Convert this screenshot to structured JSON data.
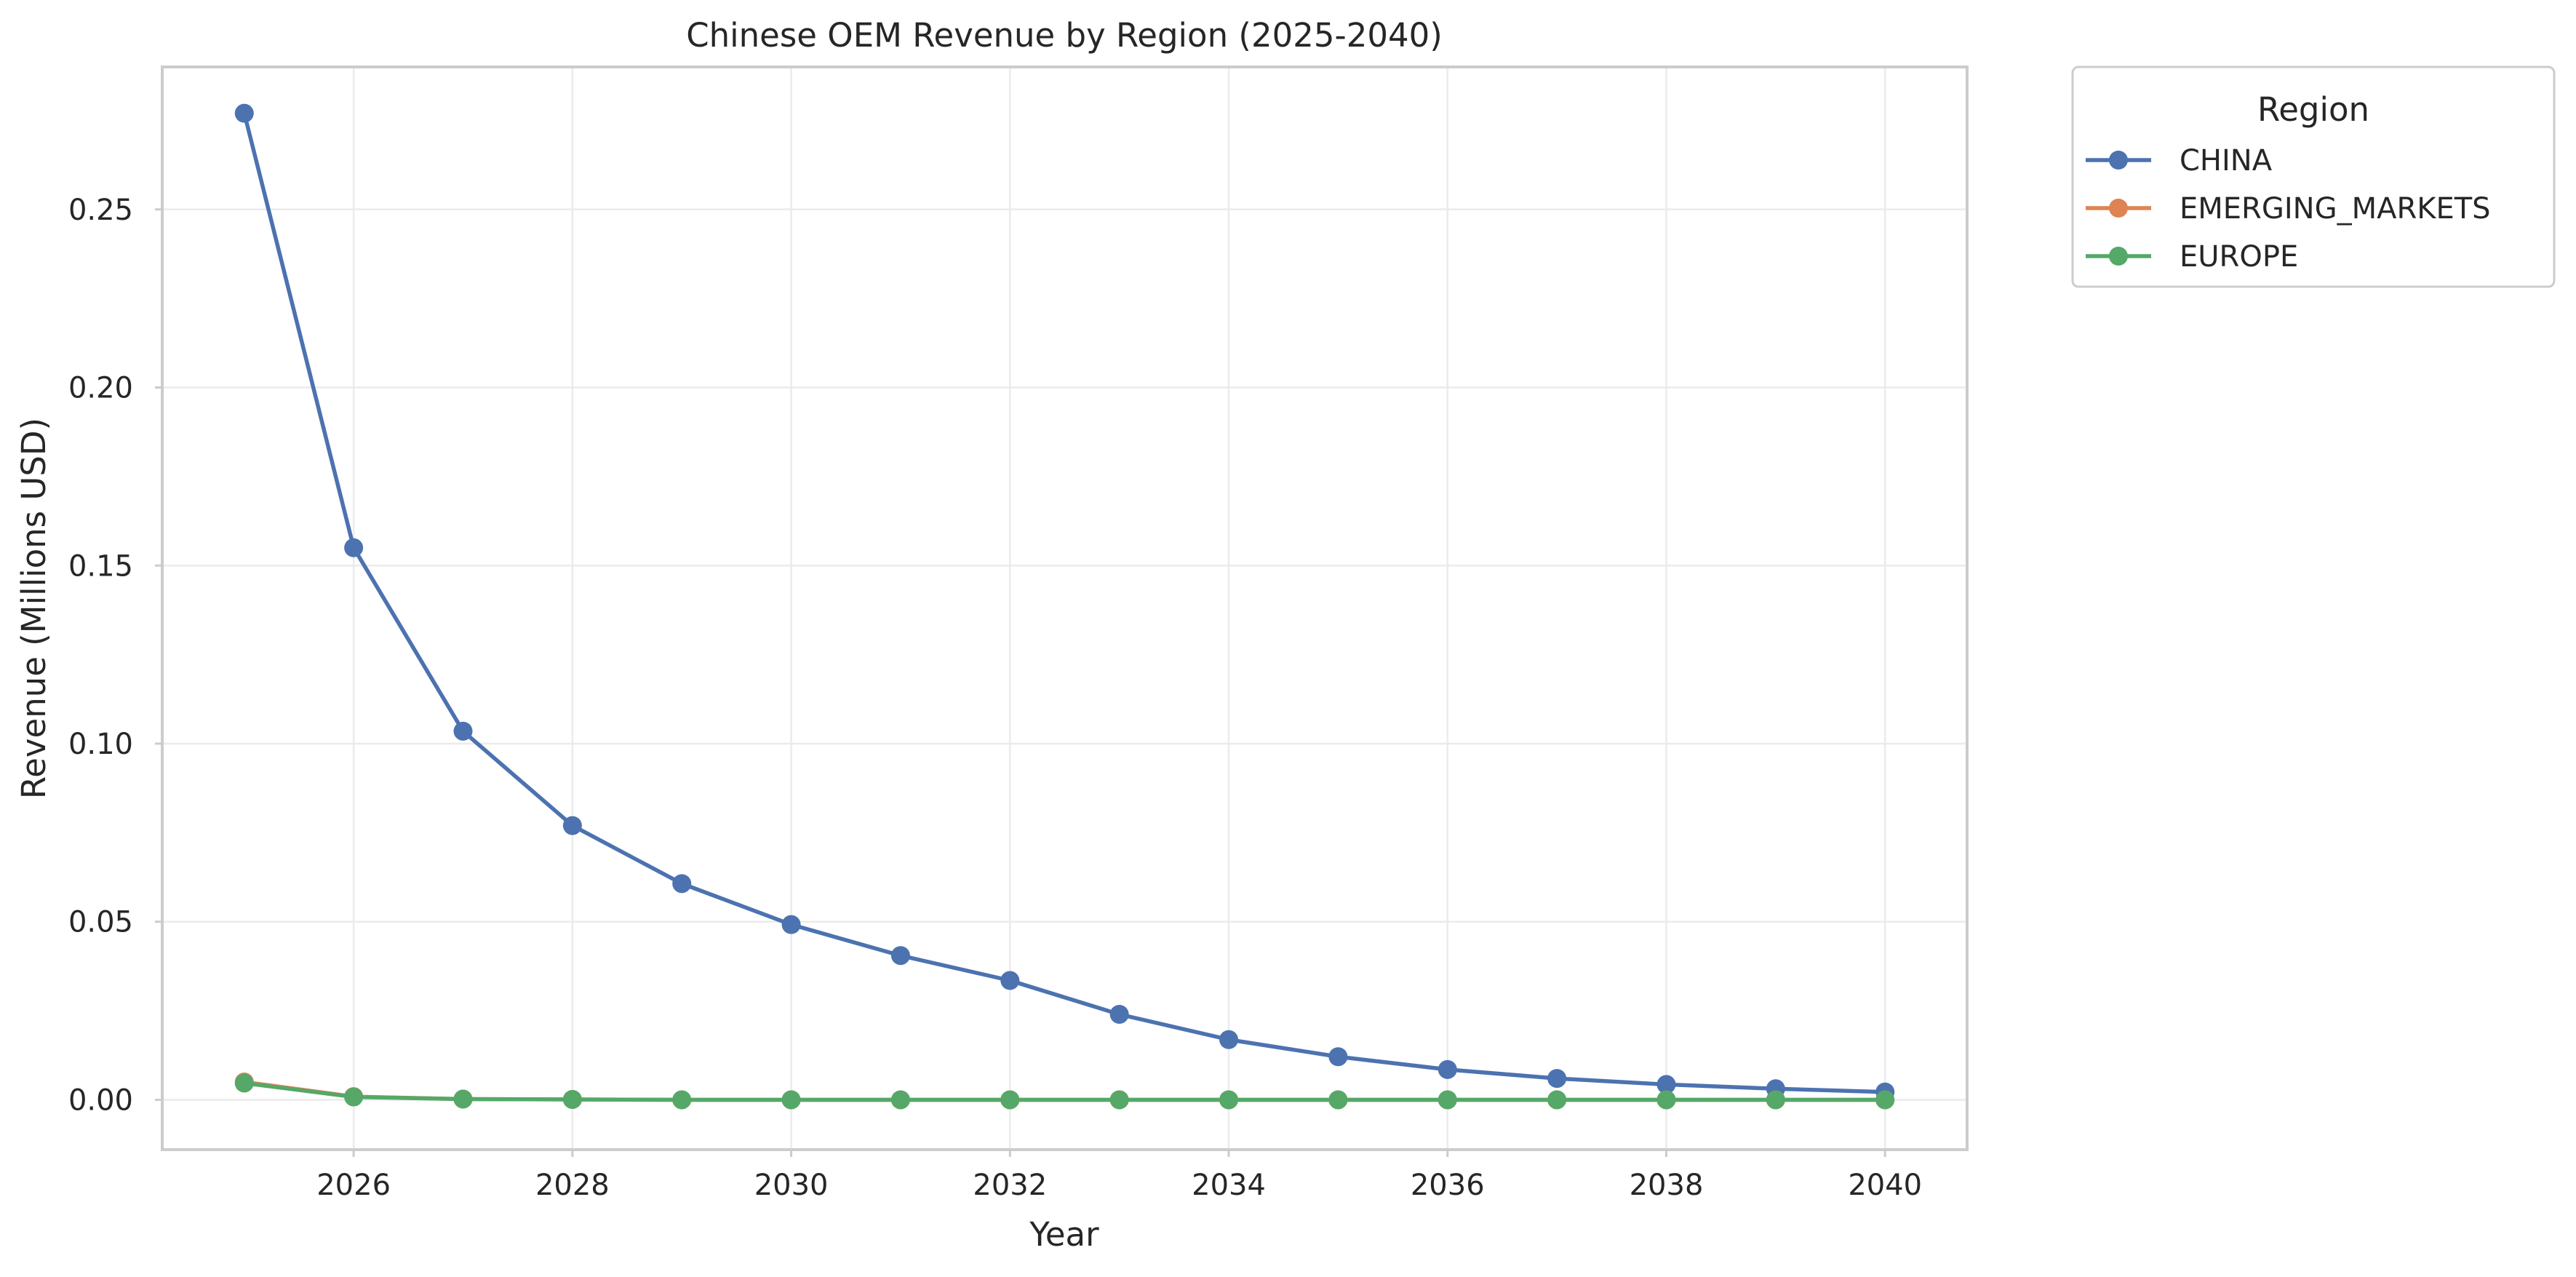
{
  "chart_data": {
    "type": "line",
    "title": "Chinese OEM Revenue by Region (2025-2040)",
    "xlabel": "Year",
    "ylabel": "Revenue (Millions USD)",
    "x": [
      2025,
      2026,
      2027,
      2028,
      2029,
      2030,
      2031,
      2032,
      2033,
      2034,
      2035,
      2036,
      2037,
      2038,
      2039,
      2040
    ],
    "xlim": [
      2024.25,
      2040.75
    ],
    "ylim": [
      -0.014,
      0.29
    ],
    "x_ticks": [
      2026,
      2028,
      2030,
      2032,
      2034,
      2036,
      2038,
      2040
    ],
    "y_ticks": [
      0.0,
      0.05,
      0.1,
      0.15,
      0.2,
      0.25
    ],
    "y_tick_labels": [
      "0.00",
      "0.05",
      "0.10",
      "0.15",
      "0.20",
      "0.25"
    ],
    "x_tick_labels": [
      "2026",
      "2028",
      "2030",
      "2032",
      "2034",
      "2036",
      "2038",
      "2040"
    ],
    "grid": true,
    "legend": {
      "title": "Region",
      "placement": "outside-top-right"
    },
    "series": [
      {
        "name": "CHINA",
        "color": "#4c72b0",
        "values": [
          0.277,
          0.155,
          0.1035,
          0.077,
          0.0607,
          0.0492,
          0.0405,
          0.0335,
          0.024,
          0.0169,
          0.0121,
          0.0085,
          0.006,
          0.0043,
          0.0031,
          0.0022
        ]
      },
      {
        "name": "EMERGING_MARKETS",
        "color": "#dd8452",
        "values": [
          0.005,
          0.0009,
          0.0002,
          0.0001,
          0.0,
          0.0,
          0.0,
          0.0,
          0.0,
          0.0,
          0.0,
          0.0,
          0.0,
          0.0,
          0.0,
          0.0
        ]
      },
      {
        "name": "EUROPE",
        "color": "#55a868",
        "values": [
          0.0047,
          0.0008,
          0.0002,
          0.0001,
          0.0,
          0.0,
          0.0,
          0.0,
          0.0,
          0.0,
          0.0,
          0.0,
          0.0,
          0.0,
          0.0,
          0.0
        ]
      }
    ]
  }
}
